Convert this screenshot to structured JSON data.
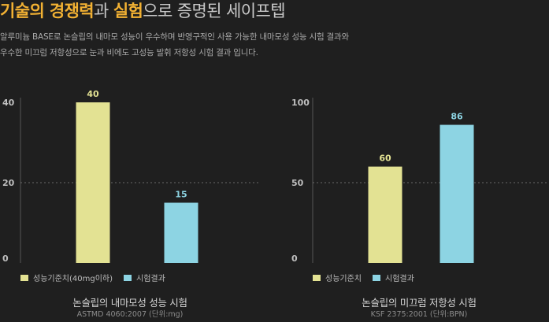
{
  "header": {
    "headline_part1": "기술의 경쟁력",
    "headline_part2": "과 ",
    "headline_part3": "실험",
    "headline_part4": "으로 증명된 세이프텝",
    "accent_color": "#f2b133",
    "description_line1": "알루미늄 BASE로 논슬립의 내마모 성능이 우수하며 반영구적인 사용 가능한 내마모성 성능 시험 결과와",
    "description_line2": "우수한 미끄럼 저항성으로 눈과 비에도 고성능 발휘 저항성 시험 결과 입니다."
  },
  "chart_data": [
    {
      "type": "bar",
      "title": "논슬립의 내마모성 성능 시험",
      "subtitle": "ASTMD 4060:2007 (단위:mg)",
      "categories": [
        "성능기준치(40mg이하)",
        "시험결과"
      ],
      "values": [
        40,
        15
      ],
      "colors": [
        "#e3e293",
        "#8dd4e3"
      ],
      "ylim": [
        0,
        40
      ],
      "yticks": [
        0,
        20,
        40
      ],
      "gridlines": [
        20
      ],
      "legend": [
        "성능기준치(40mg이하)",
        "시험결과"
      ],
      "legend_position": "bottom-left",
      "xlabel": "",
      "ylabel": ""
    },
    {
      "type": "bar",
      "title": "논슬립의 미끄럼 저항성 시험",
      "subtitle": "KSF 2375:2001 (단위:BPN)",
      "categories": [
        "성능기준치",
        "시험결과"
      ],
      "values": [
        60,
        86
      ],
      "colors": [
        "#e3e293",
        "#8dd4e3"
      ],
      "ylim": [
        0,
        100
      ],
      "yticks": [
        0,
        50,
        100
      ],
      "gridlines": [
        50
      ],
      "legend": [
        "성능기준치",
        "시험결과"
      ],
      "legend_position": "bottom-left",
      "xlabel": "",
      "ylabel": ""
    }
  ]
}
